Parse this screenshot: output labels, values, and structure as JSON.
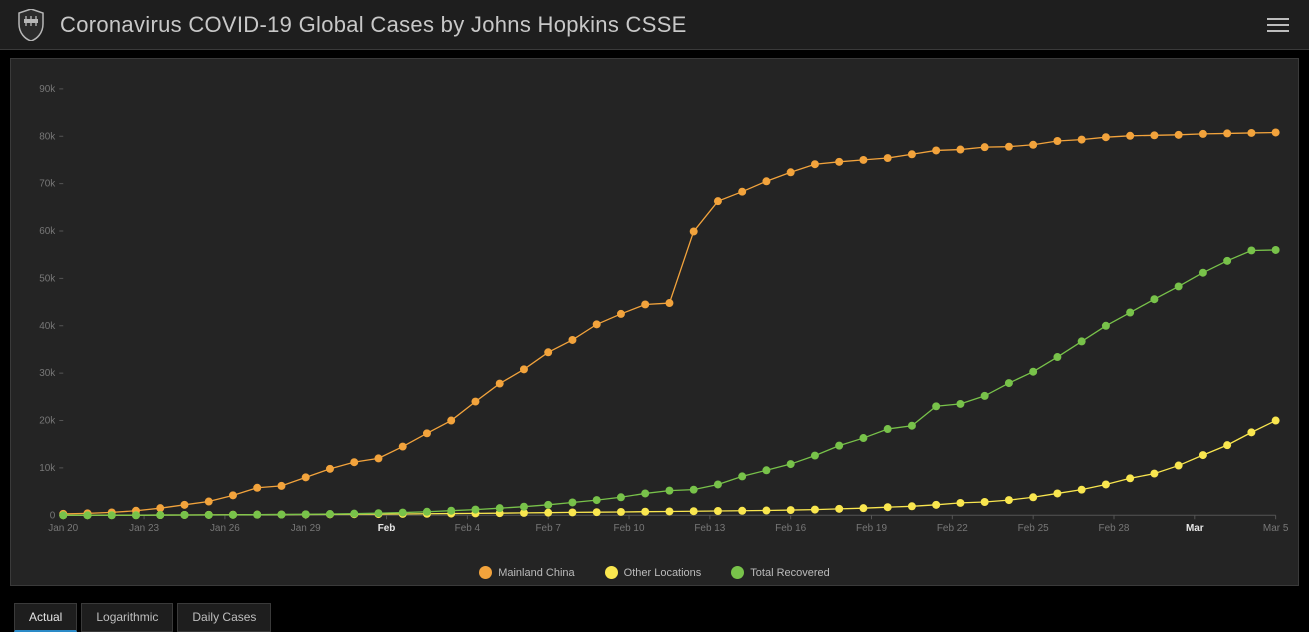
{
  "header": {
    "title": "Coronavirus COVID-19 Global Cases by Johns Hopkins CSSE"
  },
  "chart": {
    "type": "line",
    "background_color": "#242424",
    "axis_color": "#555555",
    "tick_label_color": "#777777",
    "highlight_label_color": "#e6e6e6",
    "tick_fontsize": 10,
    "marker_radius": 4,
    "line_width": 1.3,
    "y_axis": {
      "min": 0,
      "max": 90000,
      "step": 10000,
      "labels": [
        "0",
        "10k",
        "20k",
        "30k",
        "40k",
        "50k",
        "60k",
        "70k",
        "80k",
        "90k"
      ]
    },
    "x_axis": {
      "labels": [
        "Jan 20",
        "Jan 23",
        "Jan 26",
        "Jan 29",
        "Feb",
        "Feb 4",
        "Feb 7",
        "Feb 10",
        "Feb 13",
        "Feb 16",
        "Feb 19",
        "Feb 22",
        "Feb 25",
        "Feb 28",
        "Mar",
        "Mar 5"
      ],
      "highlight": [
        "Feb",
        "Mar"
      ]
    },
    "series": [
      {
        "name": "Mainland China",
        "color": "#f2a33c",
        "data": [
          300,
          400,
          600,
          950,
          1500,
          2200,
          2900,
          4200,
          5800,
          6200,
          8000,
          9800,
          11200,
          12000,
          14500,
          17300,
          20000,
          24000,
          27800,
          30800,
          34400,
          37000,
          40300,
          42500,
          44500,
          44800,
          59900,
          66300,
          68300,
          70500,
          72400,
          74100,
          74600,
          75000,
          75400,
          76200,
          77000,
          77200,
          77700,
          77800,
          78200,
          79000,
          79300,
          79800,
          80100,
          80200,
          80300,
          80500,
          80600,
          80700,
          80800
        ]
      },
      {
        "name": "Other Locations",
        "color": "#f9e64f",
        "data": [
          5,
          10,
          20,
          30,
          50,
          70,
          90,
          110,
          130,
          150,
          170,
          190,
          220,
          250,
          280,
          310,
          350,
          400,
          450,
          500,
          550,
          600,
          650,
          700,
          750,
          800,
          850,
          900,
          950,
          1000,
          1100,
          1200,
          1350,
          1500,
          1700,
          1900,
          2200,
          2600,
          2800,
          3200,
          3800,
          4600,
          5400,
          6500,
          7800,
          8800,
          10500,
          12700,
          14800,
          17500,
          20000
        ]
      },
      {
        "name": "Total Recovered",
        "color": "#78c24a",
        "data": [
          0,
          0,
          0,
          0,
          50,
          60,
          70,
          90,
          120,
          150,
          200,
          260,
          340,
          440,
          570,
          740,
          960,
          1200,
          1500,
          1800,
          2200,
          2700,
          3200,
          3800,
          4600,
          5200,
          5400,
          6500,
          8200,
          9500,
          10800,
          12600,
          14700,
          16300,
          18200,
          18900,
          23000,
          23500,
          25200,
          27900,
          30300,
          33400,
          36700,
          40000,
          42800,
          45600,
          48300,
          51200,
          53700,
          55900,
          56000
        ]
      }
    ],
    "legend": [
      {
        "label": "Mainland China",
        "color": "#f2a33c"
      },
      {
        "label": "Other Locations",
        "color": "#f9e64f"
      },
      {
        "label": "Total Recovered",
        "color": "#78c24a"
      }
    ]
  },
  "tabs": {
    "items": [
      "Actual",
      "Logarithmic",
      "Daily Cases"
    ],
    "active_index": 0
  }
}
